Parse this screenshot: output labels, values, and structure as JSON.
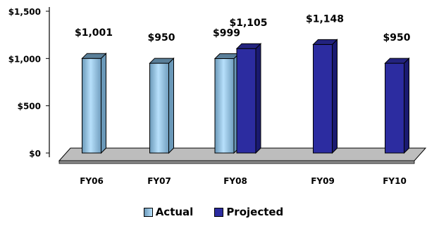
{
  "chart_data": {
    "type": "bar",
    "categories": [
      "FY06",
      "FY07",
      "FY08",
      "FY09",
      "FY10"
    ],
    "series": [
      {
        "name": "Actual",
        "values": [
          1001,
          950,
          999,
          null,
          null
        ]
      },
      {
        "name": "Projected",
        "values": [
          null,
          null,
          1105,
          1148,
          950
        ]
      }
    ],
    "data_labels": [
      {
        "category": "FY06",
        "text": "$1,001"
      },
      {
        "category": "FY07",
        "text": "$950"
      },
      {
        "category": "FY08",
        "text": "$999"
      },
      {
        "category": "FY08",
        "text": "$1,105"
      },
      {
        "category": "FY09",
        "text": "$1,148"
      },
      {
        "category": "FY10",
        "text": "$950"
      }
    ],
    "y_ticks": [
      "$0",
      "$500",
      "$1,000",
      "$1,500"
    ],
    "y_tick_values": [
      0,
      500,
      1000,
      1500
    ],
    "ylim": [
      0,
      1500
    ],
    "grid": false,
    "legend_position": "bottom",
    "colors": {
      "actual_light": "#b7e0fb",
      "actual_dark": "#6a98b8",
      "projected": "#2c2ca0",
      "projected_dark": "#1a1a70",
      "floor": "#bdbdbd"
    }
  },
  "legend": {
    "actual_label": "Actual",
    "projected_label": "Projected"
  }
}
